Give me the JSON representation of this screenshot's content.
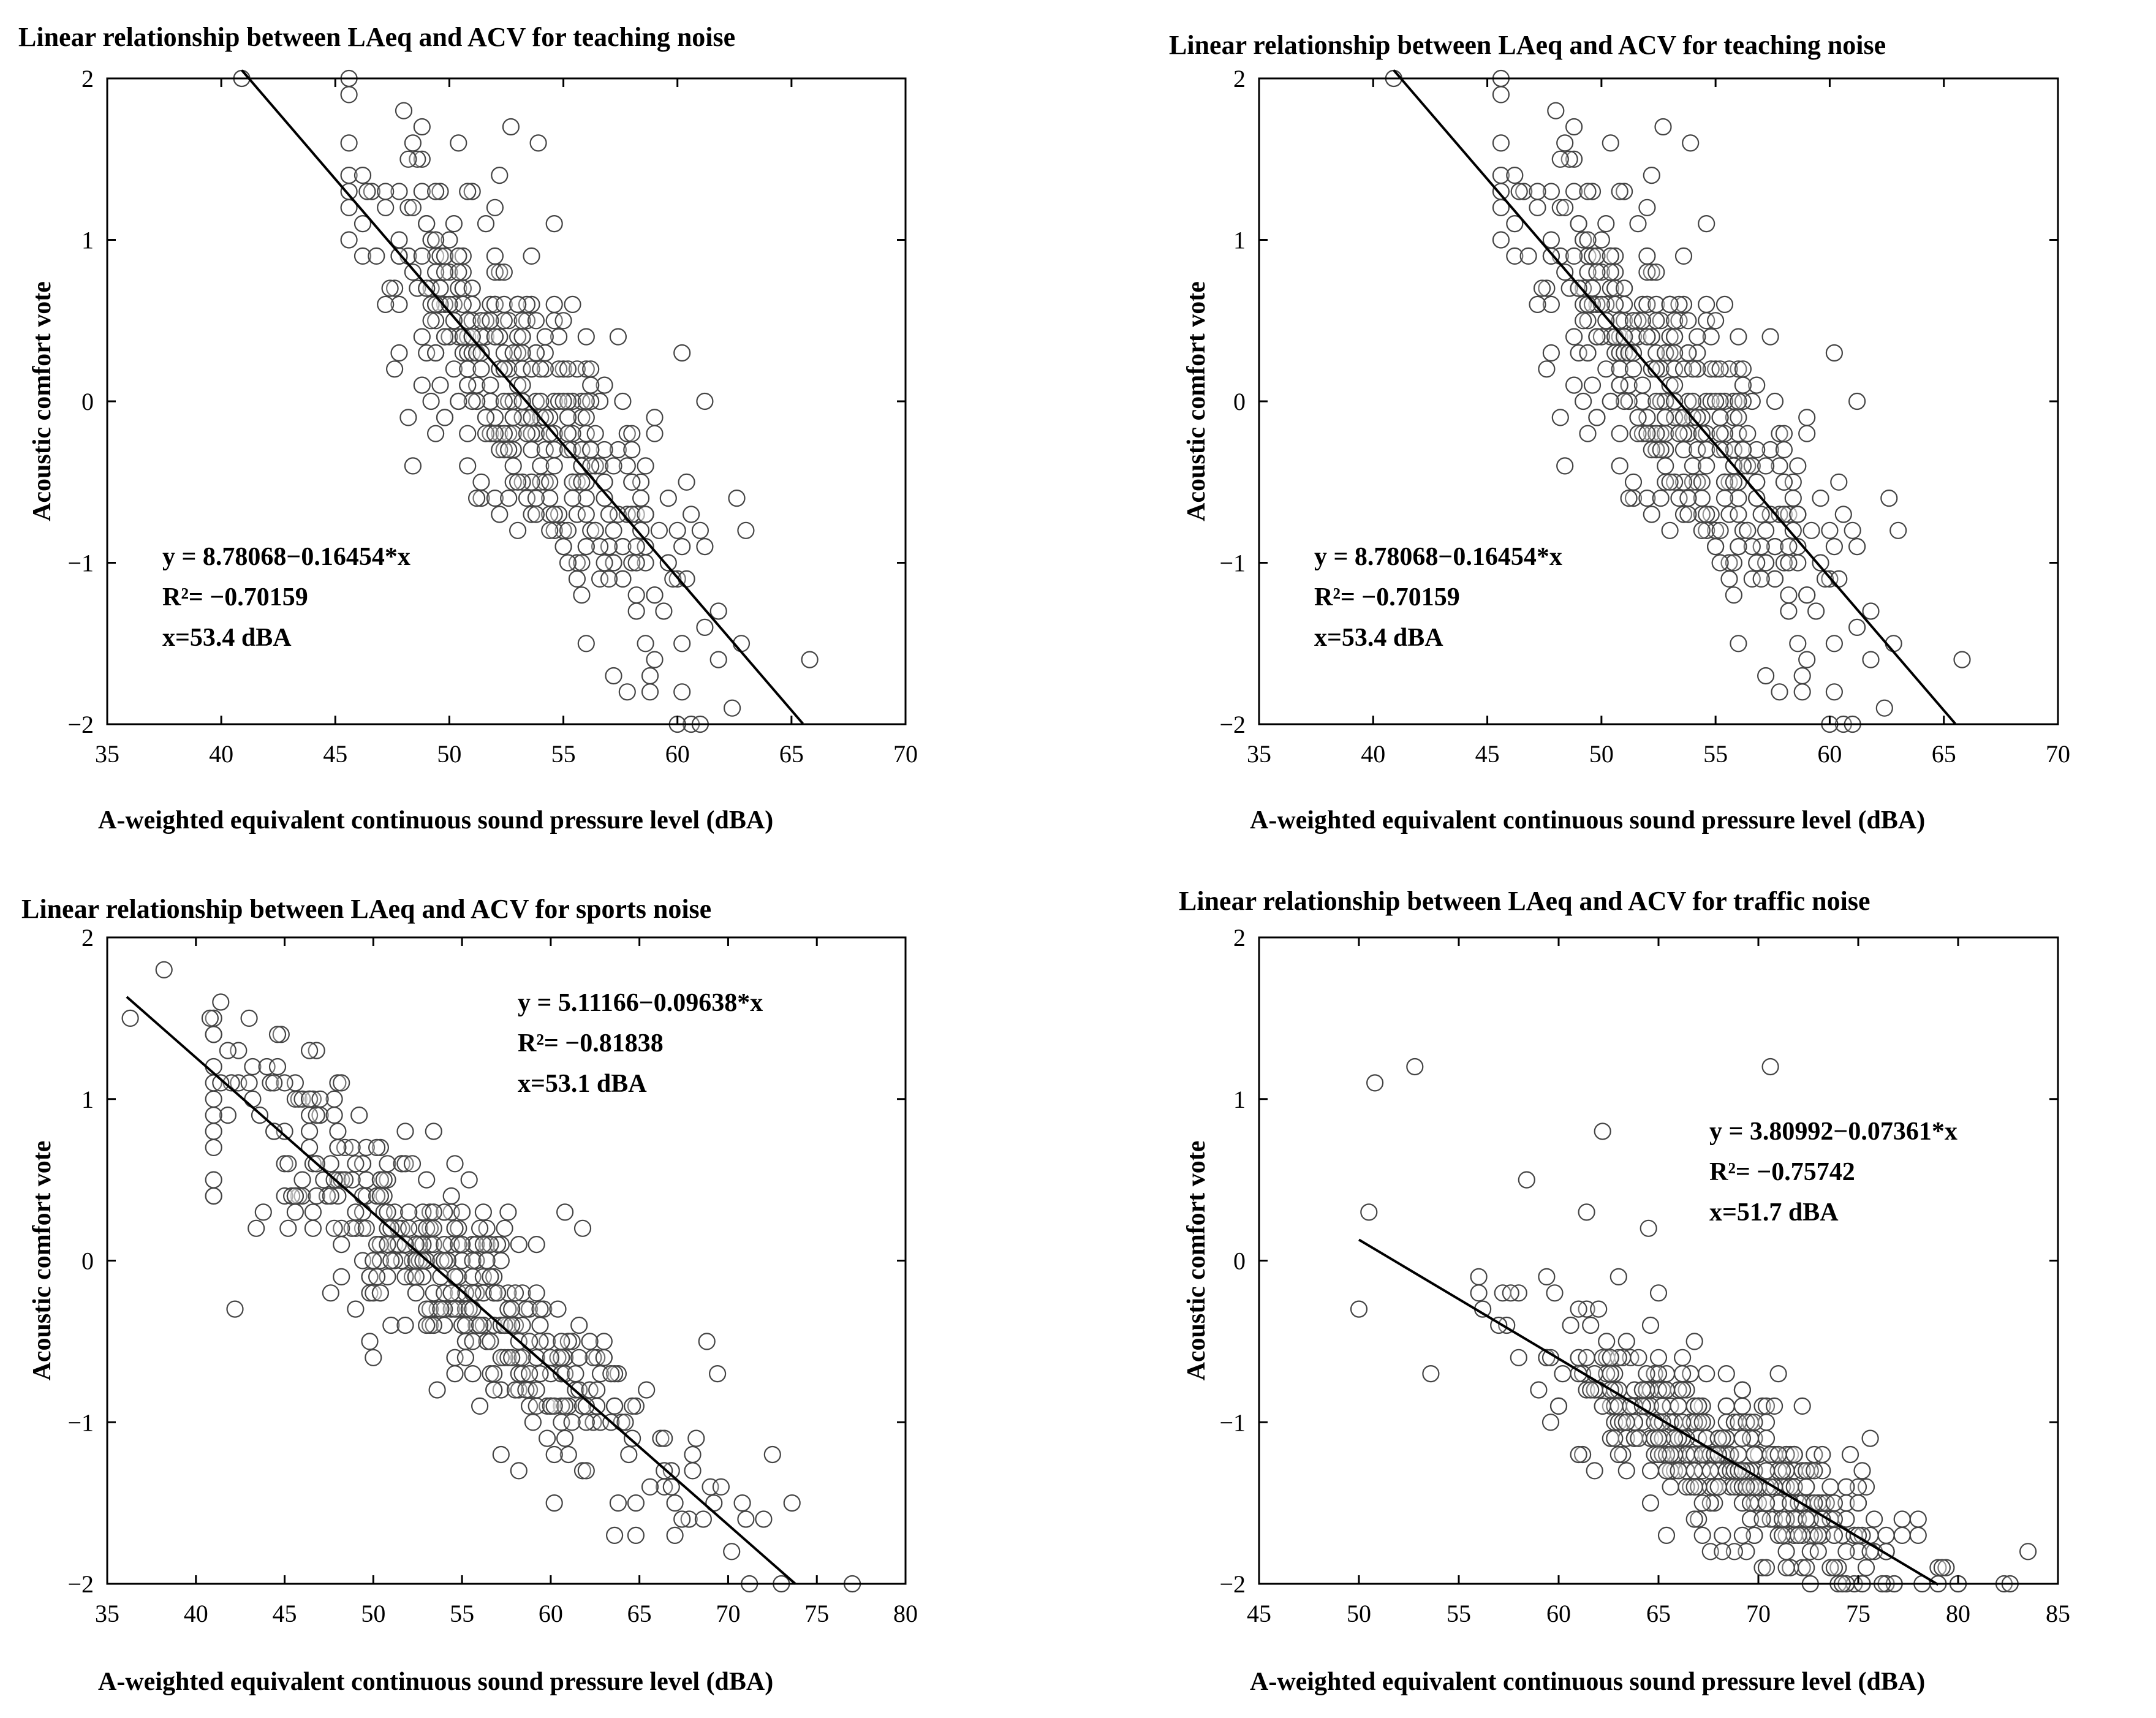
{
  "chart_data": [
    {
      "type": "scatter",
      "title": "Linear relationship between LAeq and ACV for teaching noise",
      "xlabel": "A-weighted equivalent continuous sound pressure level (dBA)",
      "ylabel": "Acoustic comfort vote",
      "xlim": [
        35,
        70
      ],
      "ylim": [
        -2,
        2
      ],
      "xticks": [
        35,
        40,
        45,
        50,
        55,
        60,
        65,
        70
      ],
      "yticks": [
        -2,
        -1,
        0,
        1,
        2
      ],
      "ytick_labels": [
        "−2",
        "−1",
        "0",
        "1",
        "2"
      ],
      "fit": {
        "intercept": 8.78068,
        "slope": -0.16454,
        "x_range": [
          40.9,
          65.5
        ]
      },
      "annotation": [
        "y = 8.78068−0.16454*x",
        "R²= −0.70159",
        "x=53.4 dBA"
      ],
      "annotation_position": "bottom-left",
      "points": {
        "n": 420,
        "seed": 11,
        "sd": 0.42,
        "x_mean": 53.2,
        "x_sd": 3.4,
        "x_min": 45.5,
        "x_max": 66,
        "extra": [
          [
            40.9,
            2.0
          ],
          [
            45.6,
            1.0
          ],
          [
            65.8,
            -1.6
          ],
          [
            61.0,
            -2.0
          ],
          [
            58.8,
            -1.8
          ],
          [
            52.7,
            1.7
          ],
          [
            53.9,
            1.6
          ],
          [
            50.4,
            1.6
          ],
          [
            62.6,
            -0.6
          ]
        ]
      }
    },
    {
      "type": "scatter",
      "title": "Linear relationship between LAeq and ACV for teaching noise",
      "xlabel": "A-weighted equivalent continuous sound pressure level (dBA)",
      "ylabel": "Acoustic comfort vote",
      "xlim": [
        35,
        70
      ],
      "ylim": [
        -2,
        2
      ],
      "xticks": [
        35,
        40,
        45,
        50,
        55,
        60,
        65,
        70
      ],
      "yticks": [
        -2,
        -1,
        0,
        1,
        2
      ],
      "ytick_labels": [
        "−2",
        "−1",
        "0",
        "1",
        "2"
      ],
      "fit": {
        "intercept": 8.78068,
        "slope": -0.16454,
        "x_range": [
          40.9,
          65.5
        ]
      },
      "annotation": [
        "y = 8.78068−0.16454*x",
        "R²= −0.70159",
        "x=53.4 dBA"
      ],
      "annotation_position": "bottom-left",
      "points": {
        "n": 420,
        "seed": 11,
        "sd": 0.42,
        "x_mean": 53.2,
        "x_sd": 3.4,
        "x_min": 45.5,
        "x_max": 66,
        "extra": [
          [
            40.9,
            2.0
          ],
          [
            45.6,
            1.0
          ],
          [
            65.8,
            -1.6
          ],
          [
            61.0,
            -2.0
          ],
          [
            58.8,
            -1.8
          ],
          [
            52.7,
            1.7
          ],
          [
            53.9,
            1.6
          ],
          [
            50.4,
            1.6
          ],
          [
            62.6,
            -0.6
          ]
        ]
      }
    },
    {
      "type": "scatter",
      "title": "Linear relationship between LAeq and ACV for sports noise",
      "xlabel": "A-weighted equivalent continuous sound pressure level (dBA)",
      "ylabel": "Acoustic comfort vote",
      "xlim": [
        35,
        80
      ],
      "ylim": [
        -2,
        2
      ],
      "xticks": [
        35,
        40,
        45,
        50,
        55,
        60,
        65,
        70,
        75,
        80
      ],
      "yticks": [
        -2,
        -1,
        0,
        1,
        2
      ],
      "ytick_labels": [
        "−2",
        "−1",
        "0",
        "1",
        "2"
      ],
      "fit": {
        "intercept": 5.11166,
        "slope": -0.09638,
        "x_range": [
          36.1,
          73.8
        ]
      },
      "annotation": [
        "y = 5.11166−0.09638*x",
        "R²= −0.81838",
        "x=53.1 dBA"
      ],
      "annotation_position": "top-right",
      "points": {
        "n": 430,
        "seed": 23,
        "sd": 0.32,
        "x_mean": 53.5,
        "x_sd": 6.5,
        "x_min": 41,
        "x_max": 73,
        "extra": [
          [
            36.3,
            1.5
          ],
          [
            38.2,
            1.8
          ],
          [
            40.8,
            1.5
          ],
          [
            42.2,
            -0.3
          ],
          [
            77.0,
            -2.0
          ],
          [
            73.6,
            -1.5
          ],
          [
            72.5,
            -1.2
          ],
          [
            71.0,
            -1.6
          ],
          [
            68.8,
            -0.5
          ],
          [
            69.4,
            -0.7
          ]
        ]
      }
    },
    {
      "type": "scatter",
      "title": "Linear relationship between LAeq and ACV for traffic noise",
      "xlabel": "A-weighted equivalent continuous sound pressure level (dBA)",
      "ylabel": "Acoustic comfort vote",
      "xlim": [
        45,
        85
      ],
      "ylim": [
        -2,
        2
      ],
      "xticks": [
        45,
        50,
        55,
        60,
        65,
        70,
        75,
        80,
        85
      ],
      "yticks": [
        -2,
        -1,
        0,
        1,
        2
      ],
      "ytick_labels": [
        "−2",
        "−1",
        "0",
        "1",
        "2"
      ],
      "fit": {
        "intercept": 3.80992,
        "slope": -0.07361,
        "x_range": [
          50.0,
          79.0
        ]
      },
      "annotation": [
        "y = 3.80992−0.07361*x",
        "R²= −0.75742",
        "x=51.7 dBA"
      ],
      "annotation_position": "top-right",
      "points": {
        "n": 440,
        "seed": 37,
        "sd": 0.24,
        "x_mean": 68.5,
        "x_sd": 4.6,
        "x_min": 56,
        "x_max": 80,
        "extra": [
          [
            50.0,
            -0.3
          ],
          [
            50.5,
            0.3
          ],
          [
            50.8,
            1.1
          ],
          [
            52.8,
            1.2
          ],
          [
            53.6,
            -0.7
          ],
          [
            70.6,
            1.2
          ],
          [
            62.2,
            0.8
          ],
          [
            61.4,
            0.3
          ],
          [
            58.4,
            0.5
          ],
          [
            83.5,
            -1.8
          ],
          [
            82.3,
            -2.0
          ],
          [
            82.6,
            -2.0
          ],
          [
            64.5,
            0.2
          ]
        ]
      }
    }
  ]
}
